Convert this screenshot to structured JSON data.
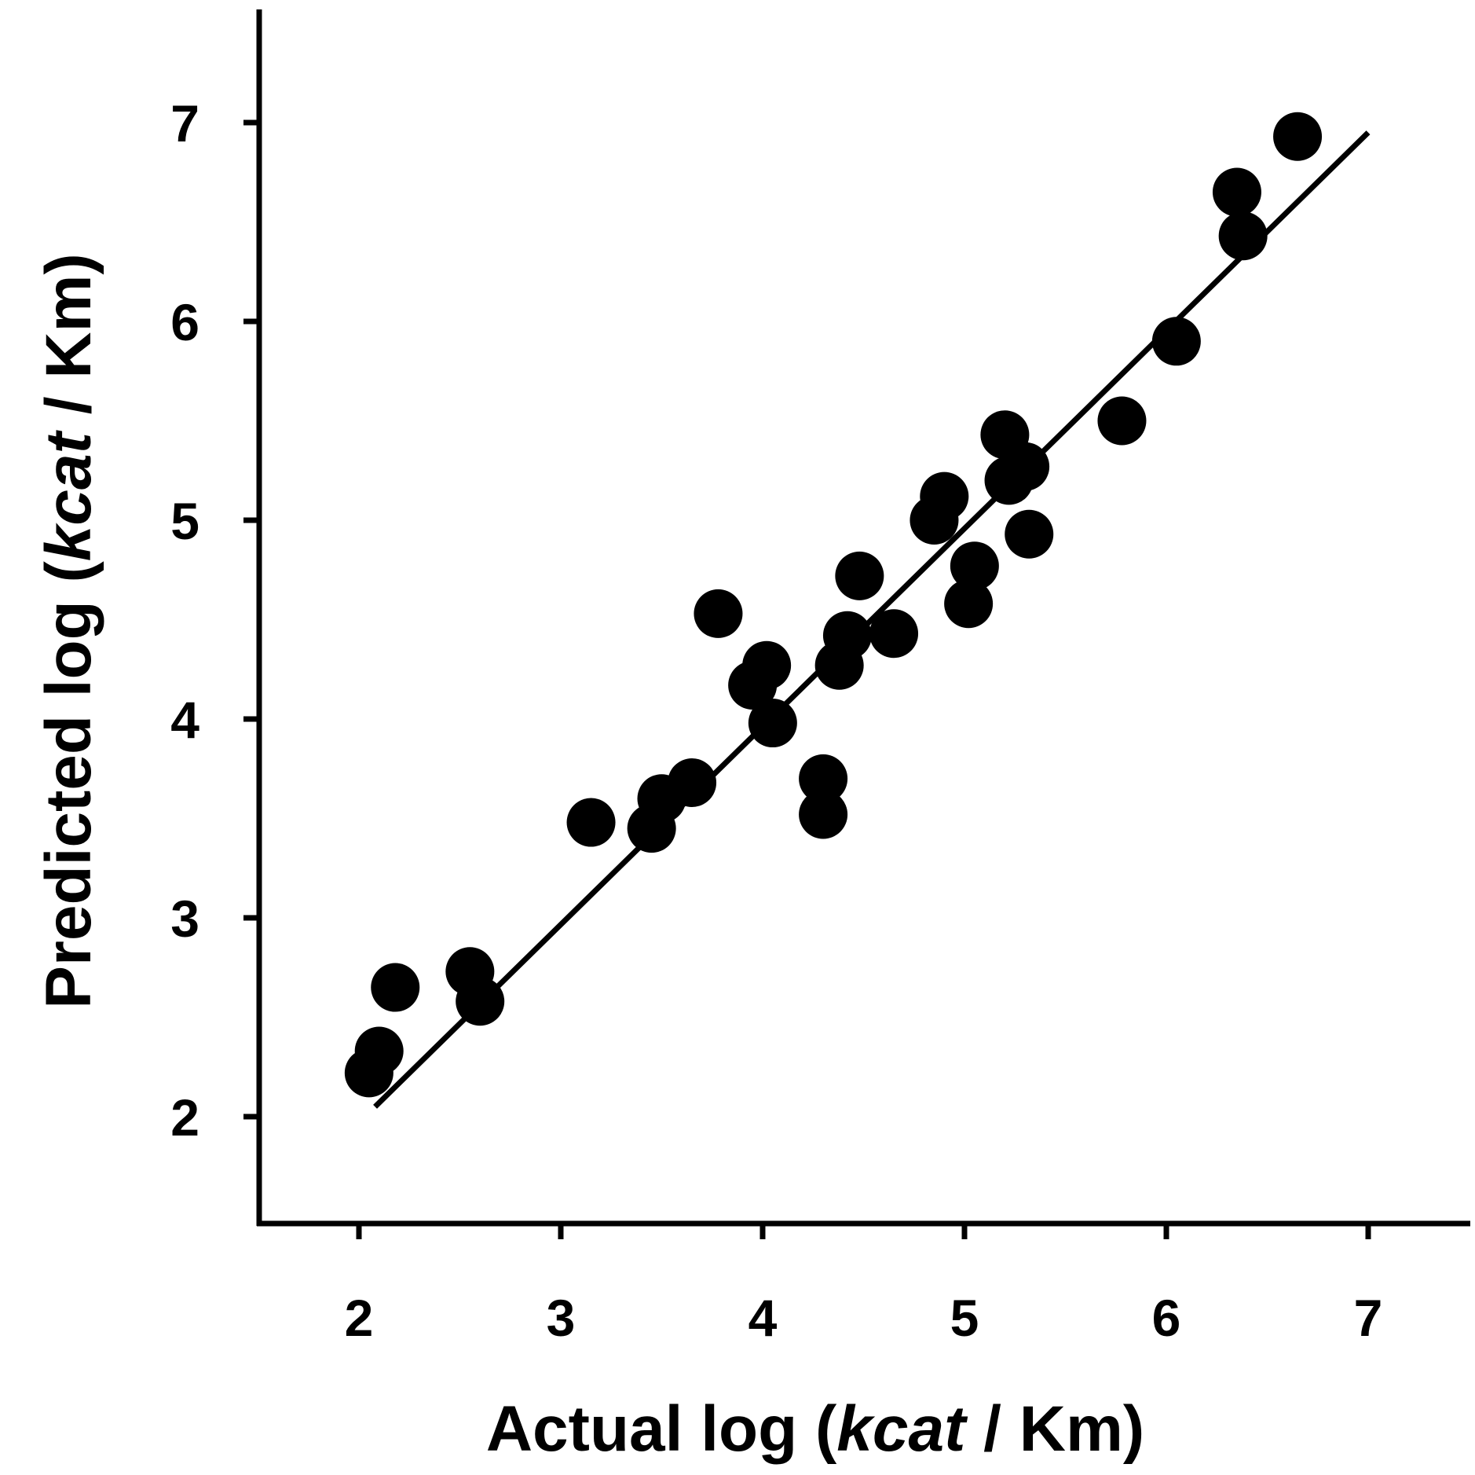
{
  "chart_data": {
    "type": "scatter",
    "title": "",
    "xlabel": {
      "prefix": "Actual log (",
      "italic": "kcat",
      "suffix": " / Km)"
    },
    "ylabel": {
      "prefix": "Predicted log (",
      "italic": "kcat",
      "suffix": " / Km)"
    },
    "xlim": [
      1.5,
      7.5
    ],
    "ylim": [
      1.5,
      7.8
    ],
    "xticks": [
      "2",
      "3",
      "4",
      "5",
      "6",
      "7"
    ],
    "yticks": [
      "2",
      "3",
      "4",
      "5",
      "6",
      "7"
    ],
    "grid": false,
    "legend": "none",
    "marker_color": "#000000",
    "fit_line": {
      "x": [
        2.08,
        7.0
      ],
      "y": [
        2.05,
        6.95
      ]
    },
    "points": [
      {
        "x": 2.05,
        "y": 2.22
      },
      {
        "x": 2.1,
        "y": 2.33
      },
      {
        "x": 2.18,
        "y": 2.65
      },
      {
        "x": 2.55,
        "y": 2.73
      },
      {
        "x": 2.6,
        "y": 2.58
      },
      {
        "x": 3.15,
        "y": 3.48
      },
      {
        "x": 3.45,
        "y": 3.45
      },
      {
        "x": 3.5,
        "y": 3.6
      },
      {
        "x": 3.65,
        "y": 3.68
      },
      {
        "x": 3.78,
        "y": 4.53
      },
      {
        "x": 3.95,
        "y": 4.17
      },
      {
        "x": 4.02,
        "y": 4.27
      },
      {
        "x": 4.05,
        "y": 3.98
      },
      {
        "x": 4.3,
        "y": 3.7
      },
      {
        "x": 4.3,
        "y": 3.52
      },
      {
        "x": 4.38,
        "y": 4.27
      },
      {
        "x": 4.42,
        "y": 4.42
      },
      {
        "x": 4.48,
        "y": 4.72
      },
      {
        "x": 4.65,
        "y": 4.43
      },
      {
        "x": 4.85,
        "y": 5.0
      },
      {
        "x": 4.9,
        "y": 5.12
      },
      {
        "x": 5.02,
        "y": 4.58
      },
      {
        "x": 5.05,
        "y": 4.77
      },
      {
        "x": 5.2,
        "y": 5.43
      },
      {
        "x": 5.22,
        "y": 5.2
      },
      {
        "x": 5.3,
        "y": 5.27
      },
      {
        "x": 5.32,
        "y": 4.93
      },
      {
        "x": 5.78,
        "y": 5.5
      },
      {
        "x": 6.05,
        "y": 5.9
      },
      {
        "x": 6.35,
        "y": 6.65
      },
      {
        "x": 6.38,
        "y": 6.43
      },
      {
        "x": 6.65,
        "y": 6.93
      }
    ]
  }
}
